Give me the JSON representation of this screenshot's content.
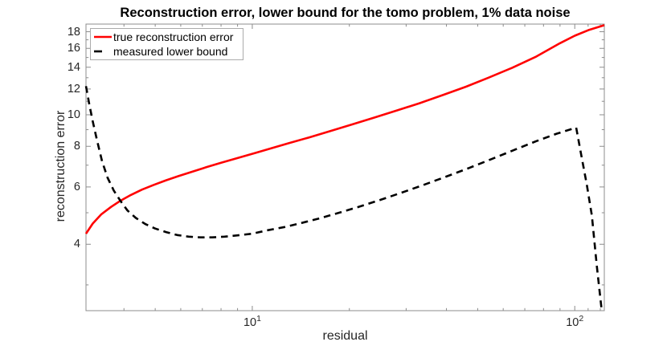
{
  "colors": {
    "background": "#ffffff",
    "axis": "#8c8c8c",
    "tick_text": "#262626",
    "title_text": "#000000",
    "series_red": "#ff0000",
    "series_black": "#000000"
  },
  "chart_data": {
    "type": "line",
    "title": "Reconstruction error, lower bound for the tomo problem, 1% data noise",
    "xlabel": "residual",
    "ylabel": "reconstruction error",
    "x_scale": "log",
    "y_scale": "log",
    "xlim": [
      3.05,
      123.5
    ],
    "ylim": [
      2.5,
      19.0
    ],
    "grid": false,
    "x_major_ticks": [
      {
        "value": 10,
        "base": "10",
        "exp": "1"
      },
      {
        "value": 100,
        "base": "10",
        "exp": "2"
      }
    ],
    "x_minor_ticks": [
      4,
      5,
      6,
      7,
      8,
      9,
      20,
      30,
      40,
      50,
      60,
      70,
      80,
      90,
      110,
      120
    ],
    "y_major_ticks": [
      {
        "value": 4,
        "label": "4"
      },
      {
        "value": 6,
        "label": "6"
      },
      {
        "value": 8,
        "label": "8"
      },
      {
        "value": 10,
        "label": "10"
      },
      {
        "value": 12,
        "label": "12"
      },
      {
        "value": 14,
        "label": "14"
      },
      {
        "value": 16,
        "label": "16"
      },
      {
        "value": 18,
        "label": "18"
      }
    ],
    "y_minor_ticks": [
      3,
      5,
      7,
      9,
      11,
      13,
      15,
      17
    ],
    "legend": {
      "position": "top-left",
      "entries": [
        {
          "label": "true reconstruction error",
          "color": "#ff0000",
          "style": "solid"
        },
        {
          "label": "measured lower bound",
          "color": "#000000",
          "style": "dashed"
        }
      ]
    },
    "series": [
      {
        "id": "true-reconstruction-error",
        "name": "true reconstruction error",
        "color": "#ff0000",
        "line_style": "solid",
        "x": [
          3.05,
          3.2,
          3.4,
          3.65,
          3.9,
          4.2,
          4.55,
          4.95,
          5.4,
          5.9,
          6.5,
          7.2,
          8.0,
          9.0,
          10.2,
          11.5,
          13,
          15,
          17.5,
          20.5,
          24,
          28,
          33,
          39,
          46,
          54,
          64,
          76,
          90,
          100,
          111,
          123.5
        ],
        "y": [
          4.31,
          4.63,
          4.94,
          5.21,
          5.44,
          5.67,
          5.89,
          6.09,
          6.29,
          6.48,
          6.68,
          6.9,
          7.12,
          7.36,
          7.63,
          7.9,
          8.18,
          8.52,
          8.92,
          9.35,
          9.82,
          10.3,
          10.85,
          11.5,
          12.2,
          13.0,
          13.95,
          15.1,
          16.6,
          17.5,
          18.25,
          18.85
        ]
      },
      {
        "id": "measured-lower-bound",
        "name": "measured lower bound",
        "color": "#000000",
        "line_style": "dashed",
        "x": [
          3.05,
          3.12,
          3.2,
          3.3,
          3.42,
          3.56,
          3.72,
          3.9,
          4.1,
          4.35,
          4.65,
          5.0,
          5.4,
          5.85,
          6.35,
          6.9,
          7.5,
          8.2,
          9.0,
          10,
          11.2,
          12.6,
          14.2,
          16,
          18.5,
          21.5,
          25,
          29,
          34,
          40,
          47,
          55,
          65,
          76,
          88,
          101,
          105,
          109,
          113,
          117,
          121
        ],
        "y": [
          12.25,
          10.8,
          9.55,
          8.35,
          7.2,
          6.4,
          5.85,
          5.44,
          5.08,
          4.82,
          4.62,
          4.47,
          4.36,
          4.27,
          4.22,
          4.2,
          4.2,
          4.22,
          4.26,
          4.31,
          4.42,
          4.52,
          4.65,
          4.79,
          4.99,
          5.22,
          5.48,
          5.76,
          6.09,
          6.46,
          6.86,
          7.3,
          7.8,
          8.3,
          8.75,
          9.13,
          7.43,
          6.1,
          4.9,
          3.44,
          2.55
        ]
      }
    ]
  }
}
